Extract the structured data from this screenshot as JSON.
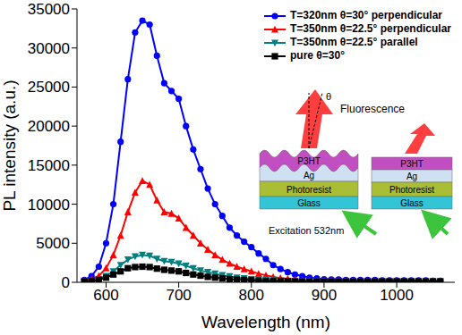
{
  "chart_data": {
    "type": "line",
    "x_label": "Wavelength (nm)",
    "y_label": "PL intensity (a.u.)",
    "x": [
      570,
      580,
      590,
      600,
      610,
      620,
      630,
      640,
      650,
      660,
      670,
      680,
      690,
      700,
      710,
      720,
      730,
      740,
      750,
      760,
      770,
      780,
      790,
      800,
      810,
      820,
      830,
      840,
      850,
      860,
      870,
      880,
      890,
      900,
      910,
      920,
      930,
      940,
      950,
      960,
      970,
      980,
      990,
      1000,
      1010,
      1020,
      1030,
      1040,
      1050,
      1060
    ],
    "series": [
      {
        "name": "T=320nm θ=30° perpendicular",
        "color": "#0000ff",
        "marker": "circle",
        "values": [
          300,
          800,
          2000,
          5000,
          10000,
          18000,
          26000,
          32000,
          33500,
          33000,
          29000,
          25500,
          24500,
          23500,
          20000,
          17000,
          14500,
          12000,
          10000,
          8500,
          7000,
          6000,
          5200,
          4500,
          3700,
          3000,
          2200,
          1700,
          1300,
          1000,
          800,
          600,
          500,
          400,
          350,
          350,
          300,
          300,
          300,
          300,
          300,
          250,
          250,
          250,
          250,
          250,
          250,
          250,
          200,
          200
        ]
      },
      {
        "name": "T=350nm θ=22.5° perpendicular",
        "color": "#ff0000",
        "marker": "triangle",
        "values": [
          200,
          400,
          800,
          1800,
          3500,
          6000,
          9000,
          11500,
          13000,
          12500,
          10500,
          9000,
          8800,
          8200,
          7000,
          6000,
          5000,
          4200,
          3500,
          2900,
          2400,
          2000,
          1700,
          1400,
          1100,
          900,
          700,
          550,
          450,
          350,
          300,
          250,
          200,
          200,
          200,
          200,
          200,
          150,
          150,
          150,
          150,
          150,
          150,
          150,
          150,
          150,
          150,
          150,
          150,
          150
        ]
      },
      {
        "name": "T=350nm θ=22.5° parallel",
        "color": "#008080",
        "marker": "triangle-down",
        "values": [
          100,
          200,
          400,
          800,
          1400,
          2200,
          2900,
          3300,
          3500,
          3400,
          3000,
          2700,
          2600,
          2400,
          2100,
          1800,
          1500,
          1300,
          1100,
          900,
          750,
          600,
          500,
          400,
          350,
          300,
          250,
          200,
          150,
          150,
          150,
          150,
          150,
          150,
          150,
          150,
          150,
          150,
          100,
          100,
          100,
          100,
          100,
          100,
          100,
          100,
          100,
          100,
          100,
          100
        ]
      },
      {
        "name": "pure θ=30°",
        "color": "#000000",
        "marker": "square",
        "values": [
          100,
          150,
          300,
          600,
          1000,
          1400,
          1800,
          1950,
          2000,
          1950,
          1750,
          1600,
          1500,
          1400,
          1200,
          1000,
          850,
          700,
          600,
          500,
          400,
          350,
          300,
          250,
          200,
          150,
          150,
          150,
          150,
          100,
          100,
          100,
          100,
          100,
          100,
          100,
          100,
          100,
          100,
          100,
          100,
          100,
          100,
          100,
          100,
          100,
          100,
          100,
          100,
          100
        ]
      }
    ],
    "xlim": [
      560,
      1080
    ],
    "xticks": [
      600,
      700,
      800,
      900,
      1000
    ],
    "ylim": [
      0,
      35000
    ],
    "yticks": [
      0,
      5000,
      10000,
      15000,
      20000,
      25000,
      30000,
      35000
    ],
    "legend": "top-right",
    "grid": false,
    "annotations": {
      "fluorescence": "Fluorescence",
      "excitation": "Excitation 532nm",
      "angle": "θ",
      "layers": [
        "P3HT",
        "Ag",
        "Photoresist",
        "Glass"
      ]
    }
  }
}
